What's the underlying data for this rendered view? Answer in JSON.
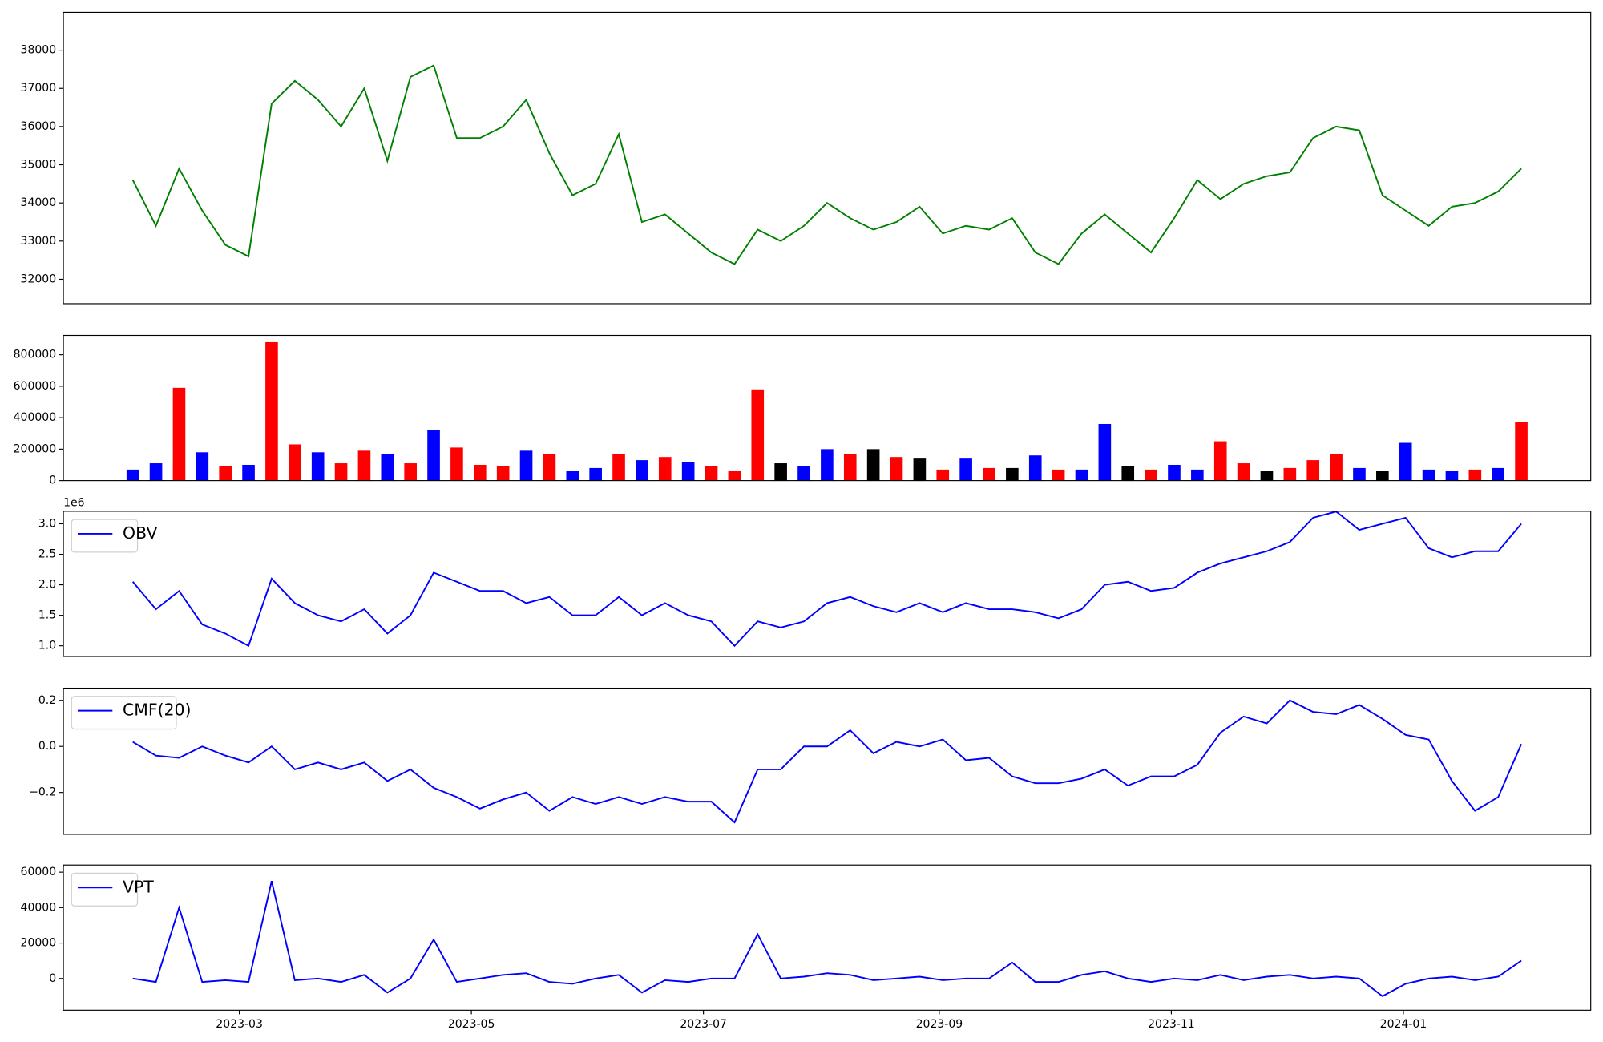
{
  "chart_data": [
    {
      "type": "line",
      "xlim": [
        "2023-02",
        "2024-02"
      ],
      "ylim": [
        31360,
        38990
      ],
      "yticks": [
        32000,
        33000,
        34000,
        35000,
        36000,
        37000,
        38000
      ],
      "series": [
        {
          "color": "green",
          "values": [
            34600,
            33400,
            34900,
            33800,
            32900,
            32600,
            36600,
            37200,
            36700,
            36000,
            37000,
            35100,
            37300,
            37600,
            35700,
            35700,
            36000,
            36700,
            35300,
            34200,
            34500,
            35800,
            33500,
            33700,
            33200,
            32700,
            32400,
            33300,
            33000,
            33400,
            34000,
            33600,
            33300,
            33500,
            33900,
            33200,
            33400,
            33300,
            33600,
            32700,
            32400,
            33200,
            33700,
            33200,
            32700,
            33600,
            34600,
            34100,
            34500,
            34700,
            34800,
            35700,
            36000,
            35900,
            34200,
            33800,
            33400,
            33900,
            34000,
            34300,
            34900
          ]
        }
      ]
    },
    {
      "type": "bar",
      "xlim": [
        "2023-02",
        "2024-02"
      ],
      "ylim": [
        0,
        923000
      ],
      "yticks": [
        0,
        200000,
        400000,
        600000,
        800000
      ],
      "values": [
        70000,
        110000,
        590000,
        180000,
        90000,
        100000,
        880000,
        230000,
        180000,
        110000,
        190000,
        170000,
        110000,
        320000,
        210000,
        100000,
        90000,
        190000,
        170000,
        60000,
        80000,
        170000,
        130000,
        150000,
        120000,
        90000,
        60000,
        580000,
        110000,
        90000,
        200000,
        170000,
        200000,
        150000,
        140000,
        70000,
        140000,
        80000,
        80000,
        160000,
        70000,
        70000,
        360000,
        90000,
        70000,
        100000,
        70000,
        250000,
        110000,
        60000,
        80000,
        130000,
        170000,
        80000,
        60000,
        240000,
        70000,
        60000,
        70000,
        80000,
        370000
      ],
      "colors": [
        "blue",
        "blue",
        "red",
        "blue",
        "red",
        "blue",
        "red",
        "red",
        "blue",
        "red",
        "red",
        "blue",
        "red",
        "blue",
        "red",
        "red",
        "red",
        "blue",
        "red",
        "blue",
        "blue",
        "red",
        "blue",
        "red",
        "blue",
        "red",
        "red",
        "red",
        "black",
        "blue",
        "blue",
        "red",
        "black",
        "red",
        "black",
        "red",
        "blue",
        "red",
        "black",
        "blue",
        "red",
        "blue",
        "blue",
        "black",
        "red",
        "blue",
        "blue",
        "red",
        "red",
        "black",
        "red",
        "red",
        "red",
        "blue",
        "black",
        "blue",
        "blue",
        "blue",
        "red",
        "blue",
        "red"
      ]
    },
    {
      "type": "line",
      "xlim": [
        "2023-02",
        "2024-02"
      ],
      "ylim": [
        0.825,
        3.205
      ],
      "offset_label": "1e6",
      "legend": "upper left",
      "yticks": [
        {
          "value": 1.0,
          "label": "1.0"
        },
        1.5,
        {
          "value": 2.0,
          "label": "2.0"
        },
        2.5,
        {
          "value": 3.0,
          "label": "3.0"
        }
      ],
      "series": [
        {
          "name": "OBV",
          "color": "blue",
          "values": [
            2.05,
            1.6,
            1.9,
            1.35,
            1.2,
            1.0,
            2.1,
            1.7,
            1.5,
            1.4,
            1.6,
            1.2,
            1.5,
            2.2,
            2.05,
            1.9,
            1.9,
            1.7,
            1.8,
            1.5,
            1.5,
            1.8,
            1.5,
            1.7,
            1.5,
            1.4,
            1.0,
            1.4,
            1.3,
            1.4,
            1.7,
            1.8,
            1.65,
            1.55,
            1.7,
            1.55,
            1.7,
            1.6,
            1.6,
            1.55,
            1.45,
            1.6,
            2.0,
            2.05,
            1.9,
            1.95,
            2.2,
            2.35,
            2.45,
            2.55,
            2.7,
            3.1,
            3.2,
            2.9,
            3.0,
            3.1,
            2.6,
            2.45,
            2.55,
            2.55,
            3.0
          ]
        }
      ]
    },
    {
      "type": "line",
      "xlim": [
        "2023-02",
        "2024-02"
      ],
      "ylim": [
        -0.382,
        0.253
      ],
      "legend": "upper left",
      "yticks": [
        {
          "value": -0.2,
          "label": "−0.2"
        },
        {
          "value": 0,
          "label": "0.0"
        },
        0.2
      ],
      "series": [
        {
          "name": "CMF(20)",
          "color": "blue",
          "values": [
            0.02,
            -0.04,
            -0.05,
            0.0,
            -0.04,
            -0.07,
            0.0,
            -0.1,
            -0.07,
            -0.1,
            -0.07,
            -0.15,
            -0.1,
            -0.18,
            -0.22,
            -0.27,
            -0.23,
            -0.2,
            -0.28,
            -0.22,
            -0.25,
            -0.22,
            -0.25,
            -0.22,
            -0.24,
            -0.24,
            -0.33,
            -0.1,
            -0.1,
            0.0,
            0.0,
            0.07,
            -0.03,
            0.02,
            0.0,
            0.03,
            -0.06,
            -0.05,
            -0.13,
            -0.16,
            -0.16,
            -0.14,
            -0.1,
            -0.17,
            -0.13,
            -0.13,
            -0.08,
            0.06,
            0.13,
            0.1,
            0.2,
            0.15,
            0.14,
            0.18,
            0.12,
            0.05,
            0.03,
            -0.15,
            -0.28,
            -0.22,
            0.01
          ]
        }
      ]
    },
    {
      "type": "line",
      "xlim": [
        "2023-02",
        "2024-02"
      ],
      "ylim": [
        -17900,
        64040
      ],
      "legend": "upper left",
      "yticks": [
        0,
        20000,
        40000,
        60000
      ],
      "xticks": [
        "2023-03",
        "2023-05",
        "2023-07",
        "2023-09",
        "2023-11",
        "2024-01"
      ],
      "series": [
        {
          "name": "VPT",
          "color": "blue",
          "values": [
            0,
            -2000,
            40000,
            -2000,
            -1000,
            -2000,
            55000,
            -1000,
            0,
            -2000,
            2000,
            -8000,
            0,
            22000,
            -2000,
            0,
            2000,
            3000,
            -2000,
            -3000,
            0,
            2000,
            -8000,
            -1000,
            -2000,
            0,
            0,
            25000,
            0,
            1000,
            3000,
            2000,
            -1000,
            0,
            1000,
            -1000,
            0,
            0,
            9000,
            -2000,
            -2000,
            2000,
            4000,
            0,
            -2000,
            0,
            -1000,
            2000,
            -1000,
            1000,
            2000,
            0,
            1000,
            0,
            -10000,
            -3000,
            0,
            1000,
            -1000,
            1000,
            10000
          ]
        }
      ]
    }
  ]
}
